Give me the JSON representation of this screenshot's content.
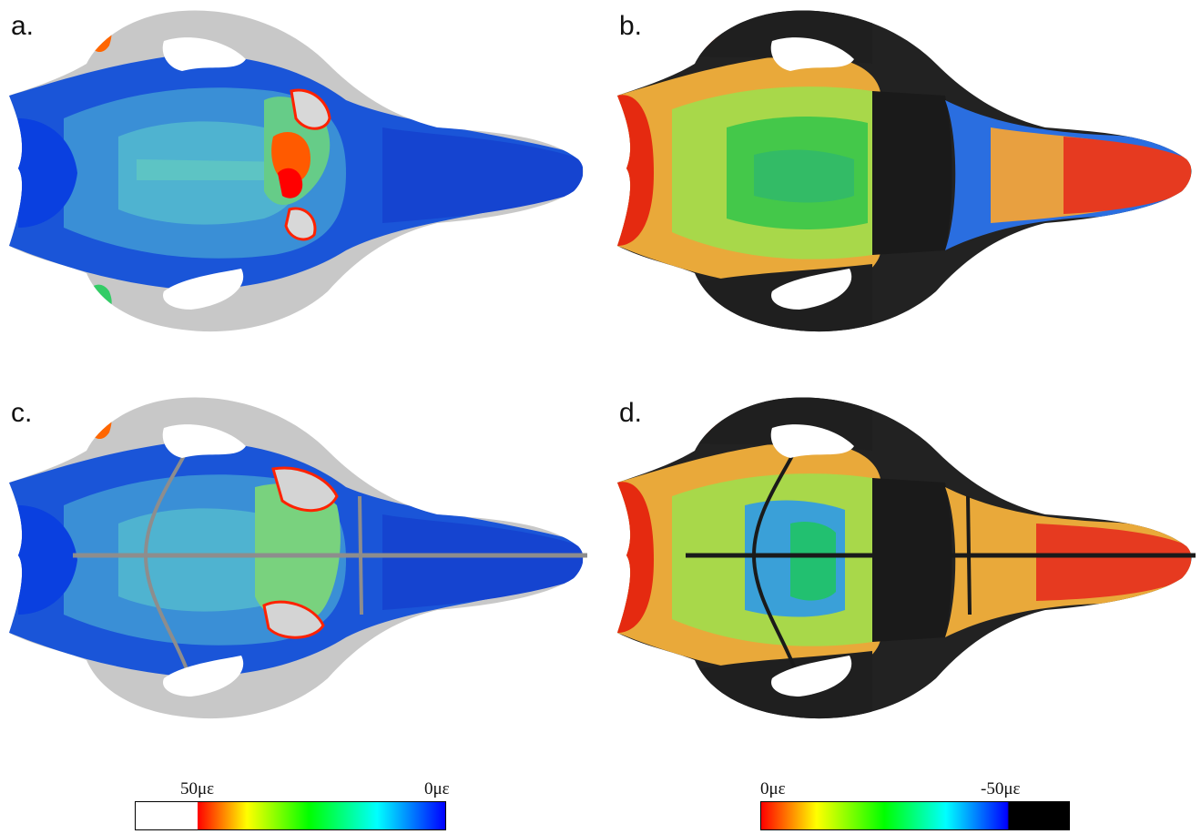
{
  "panels": [
    {
      "label": "a.",
      "scheme": "tension",
      "sutures": false
    },
    {
      "label": "b.",
      "scheme": "compression",
      "sutures": false
    },
    {
      "label": "c.",
      "scheme": "tension",
      "sutures": true
    },
    {
      "label": "d.",
      "scheme": "compression",
      "sutures": true
    }
  ],
  "legend_left": {
    "high_label": "50με",
    "low_label": "0με",
    "colors": [
      "#ffffff",
      "#ff0000",
      "#ffff00",
      "#00ff00",
      "#00ffff",
      "#0000ff"
    ]
  },
  "legend_right": {
    "high_label": "0με",
    "low_label": "-50με",
    "colors": [
      "#ff0000",
      "#ffff00",
      "#00ff00",
      "#00ffff",
      "#0000ff",
      "#000000"
    ]
  }
}
